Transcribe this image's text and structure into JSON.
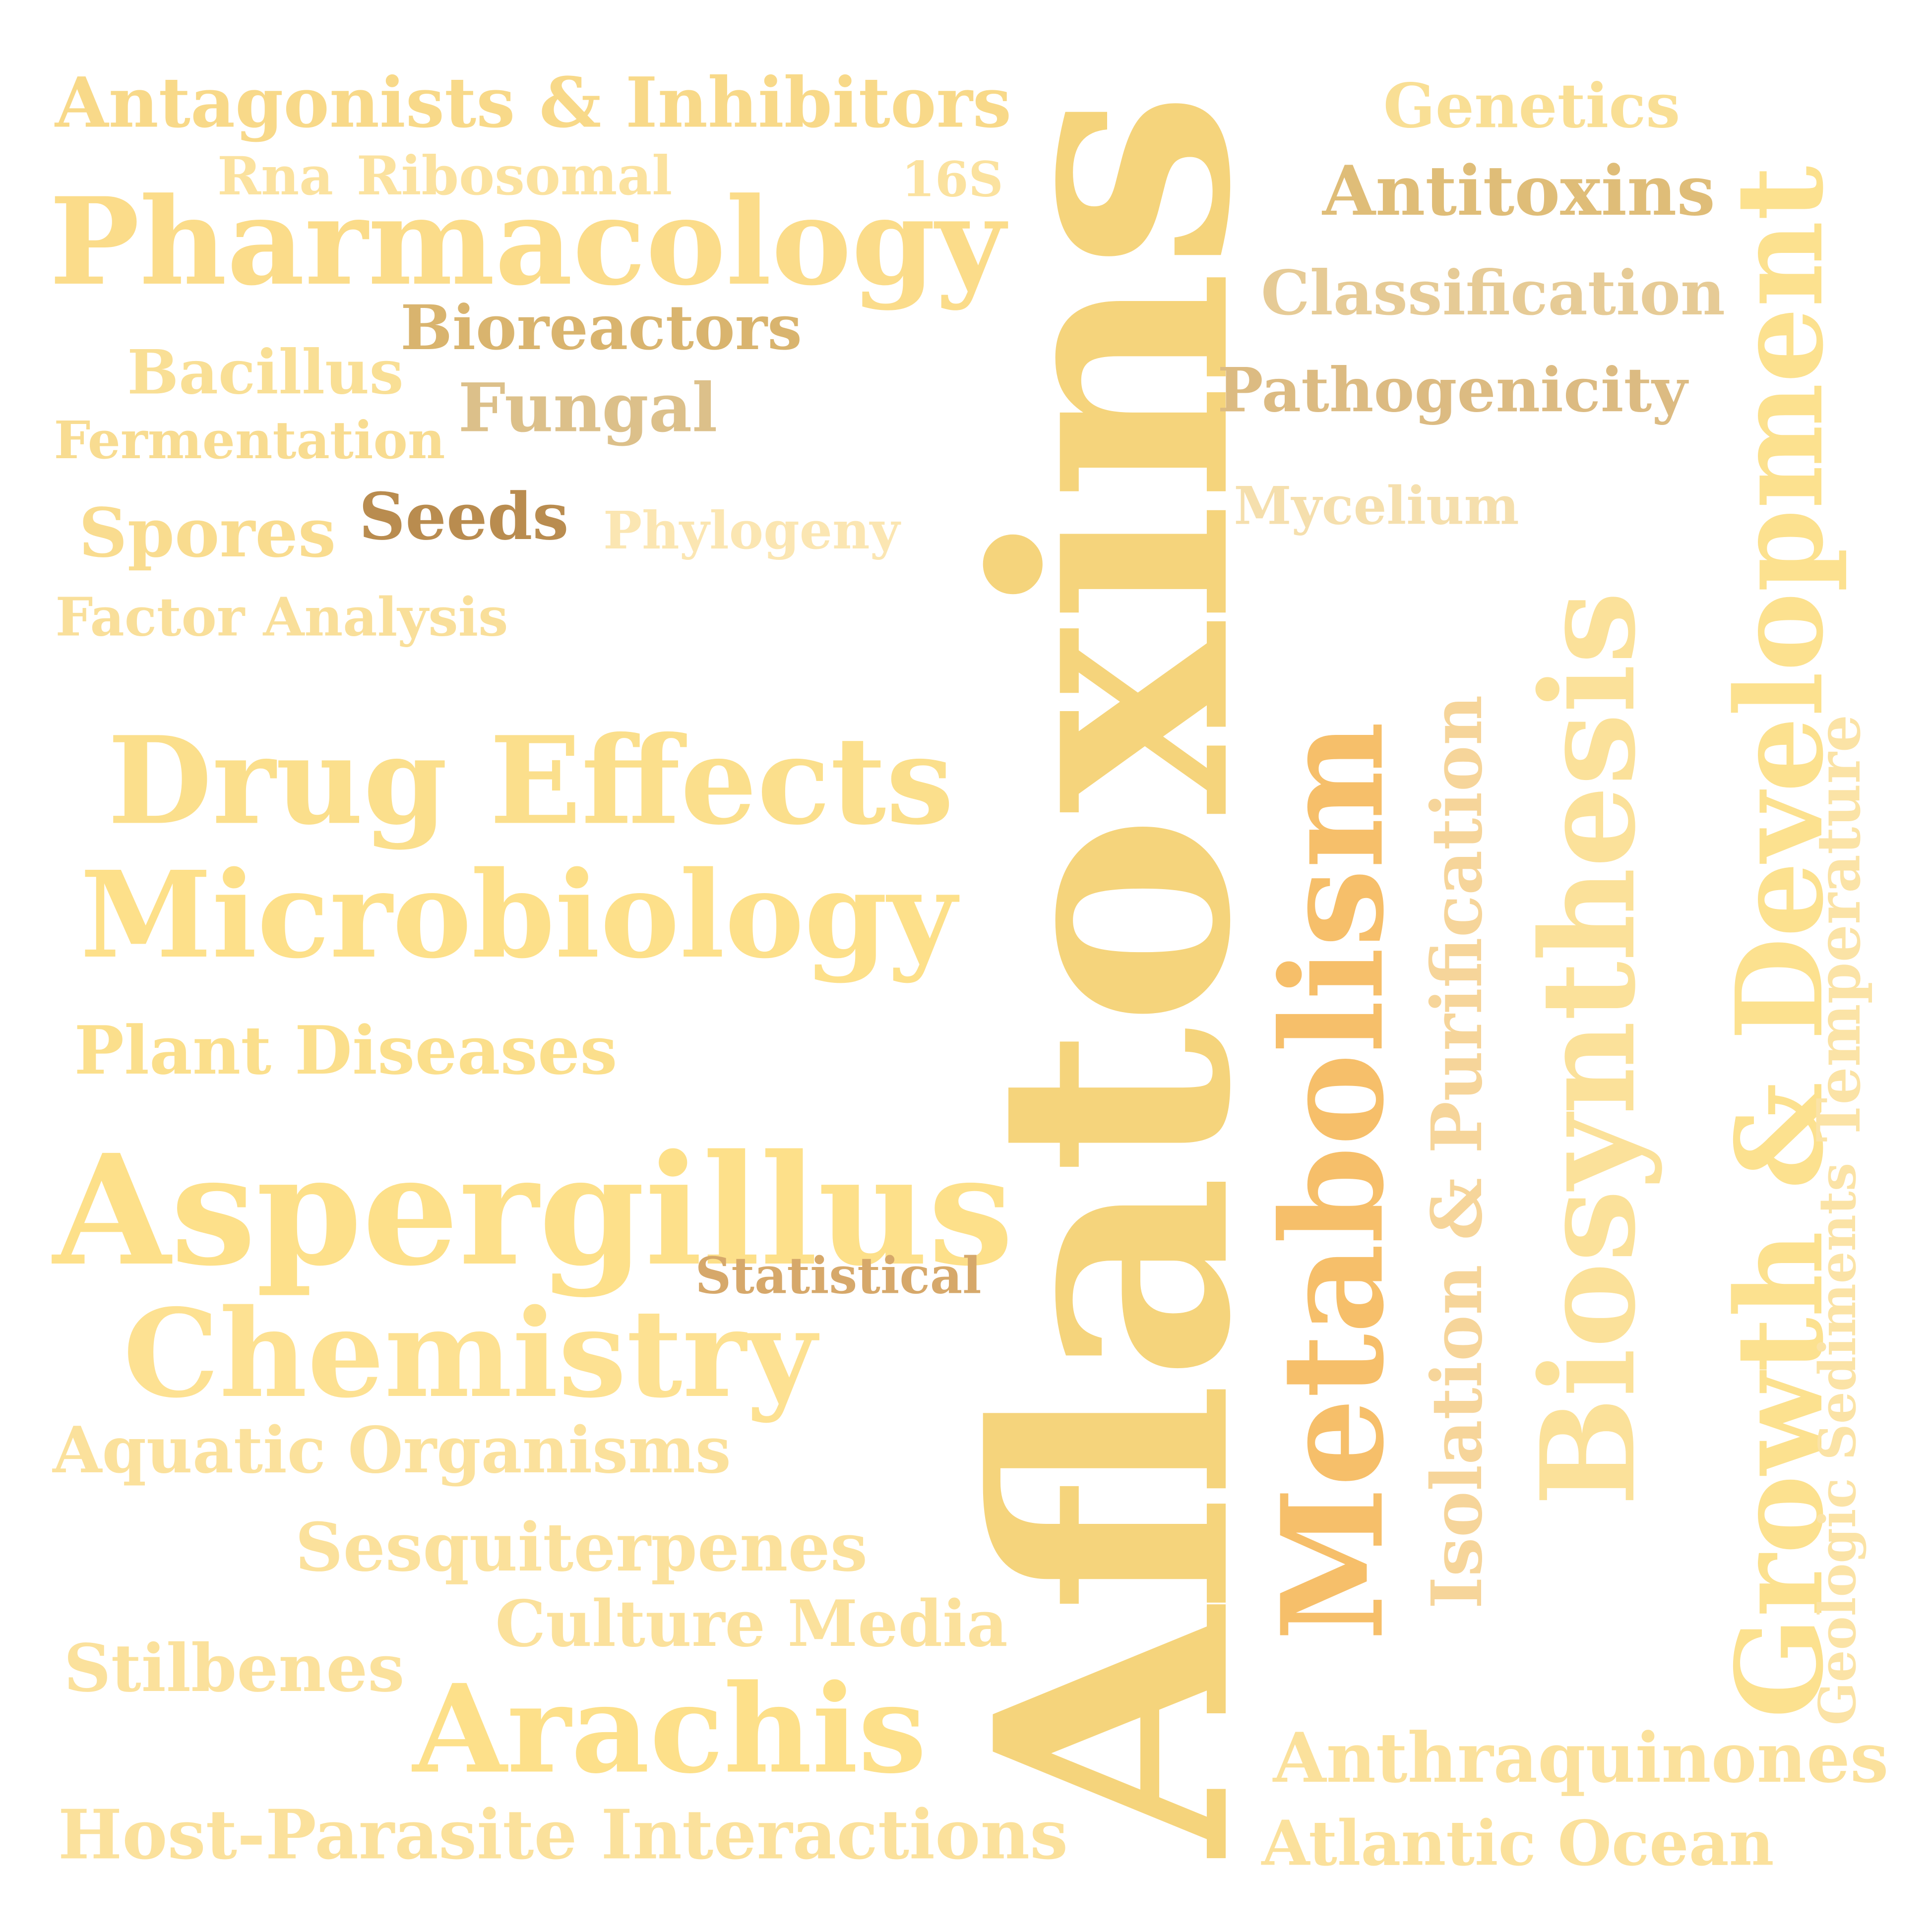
{
  "words": [
    {
      "id": "aflatoxins",
      "text": "Aflatoxins",
      "color": "#f5d47c"
    },
    {
      "id": "antagonists",
      "text": "Antagonists & Inhibitors",
      "color": "#f8d989"
    },
    {
      "id": "rna",
      "text": "Rna",
      "color": "#fbe29f"
    },
    {
      "id": "ribosomal",
      "text": "Ribosomal",
      "color": "#fbe29f"
    },
    {
      "id": "16s",
      "text": "16S",
      "color": "#fbe29f"
    },
    {
      "id": "pharmacology",
      "text": "Pharmacology",
      "color": "#fbdc8a"
    },
    {
      "id": "bioreactors",
      "text": "Bioreactors",
      "color": "#d9b46e"
    },
    {
      "id": "bacillus",
      "text": "Bacillus",
      "color": "#f9df95"
    },
    {
      "id": "fungal",
      "text": "Fungal",
      "color": "#dcc08a"
    },
    {
      "id": "fermentation",
      "text": "Fermentation",
      "color": "#f8dc91"
    },
    {
      "id": "spores",
      "text": "Spores",
      "color": "#f9dc8f"
    },
    {
      "id": "seeds",
      "text": "Seeds",
      "color": "#b98c4f"
    },
    {
      "id": "phylogeny",
      "text": "Phylogeny",
      "color": "#fbe6b2"
    },
    {
      "id": "factor-analysis",
      "text": "Factor Analysis",
      "color": "#f9df9a"
    },
    {
      "id": "genetics",
      "text": "Genetics",
      "color": "#f9df95"
    },
    {
      "id": "antitoxins",
      "text": "Antitoxins",
      "color": "#dfbd78"
    },
    {
      "id": "classification",
      "text": "Classification",
      "color": "#e6cb96"
    },
    {
      "id": "pathogenicity",
      "text": "Pathogenicity",
      "color": "#dcbb82"
    },
    {
      "id": "mycelium",
      "text": "Mycelium",
      "color": "#f5dfad"
    },
    {
      "id": "growth",
      "text": "Growth & Development",
      "color": "#fce18f"
    },
    {
      "id": "biosynthesis",
      "text": "Biosynthesis",
      "color": "#fbe19a"
    },
    {
      "id": "metabolism",
      "text": "Metabolism",
      "color": "#f6bf6a"
    },
    {
      "id": "isolation",
      "text": "Isolation & Purification",
      "color": "#f6d59a"
    },
    {
      "id": "temperature",
      "text": "Temperature",
      "color": "#fbe3a6"
    },
    {
      "id": "sediments",
      "text": "Geologic Sediments",
      "color": "#fbe3a6"
    },
    {
      "id": "drug-effects",
      "text": "Drug Effects",
      "color": "#fbdf8c"
    },
    {
      "id": "microbiology",
      "text": "Microbiology",
      "color": "#fde08a"
    },
    {
      "id": "plant-diseases",
      "text": "Plant Diseases",
      "color": "#fbdf8c"
    },
    {
      "id": "aspergillus",
      "text": "Aspergillus",
      "color": "#fde08a"
    },
    {
      "id": "statistical",
      "text": "Statistical",
      "color": "#d6a86a"
    },
    {
      "id": "chemistry",
      "text": "Chemistry",
      "color": "#fde192"
    },
    {
      "id": "aquatic",
      "text": "Aquatic Organisms",
      "color": "#fbe19c"
    },
    {
      "id": "sesquiterpenes",
      "text": "Sesquiterpenes",
      "color": "#fbe19c"
    },
    {
      "id": "culture-media",
      "text": "Culture Media",
      "color": "#fbe19c"
    },
    {
      "id": "stilbenes",
      "text": "Stilbenes",
      "color": "#fbe19c"
    },
    {
      "id": "arachis",
      "text": "Arachis",
      "color": "#fde08a"
    },
    {
      "id": "host-parasite",
      "text": "Host-Parasite Interactions",
      "color": "#fbe19c"
    },
    {
      "id": "anthraquinones",
      "text": "Anthraquinones",
      "color": "#fbe19c"
    },
    {
      "id": "atlantic",
      "text": "Atlantic Ocean",
      "color": "#fbe19c"
    }
  ]
}
